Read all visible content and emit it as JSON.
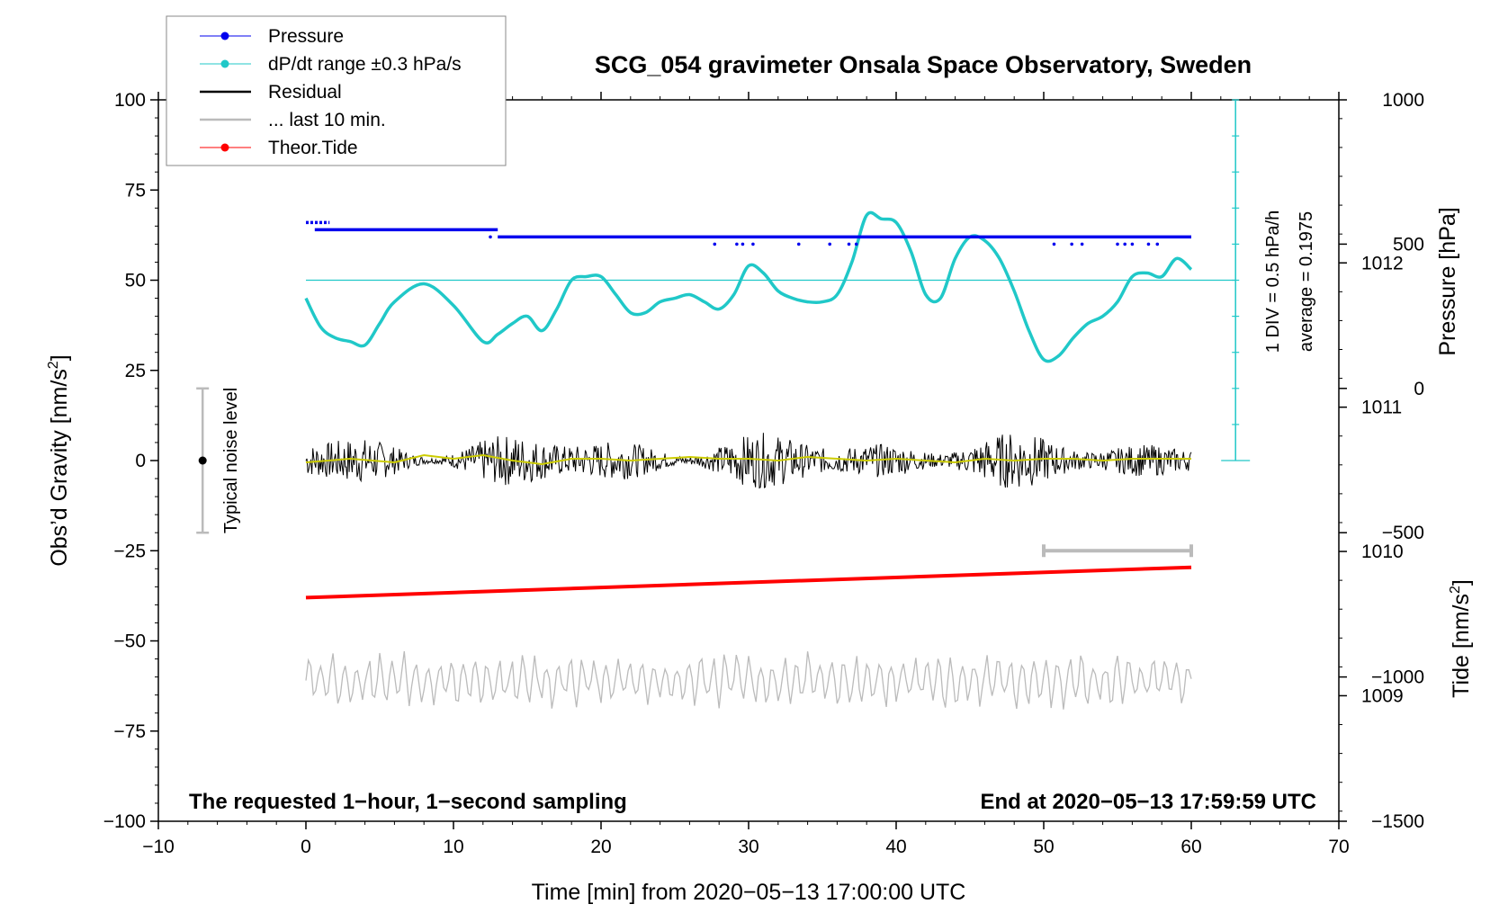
{
  "chart_data": {
    "type": "line",
    "title": "SCG_054 gravimeter Onsala Space Observatory, Sweden",
    "xlabel": "Time [min] from 2020−05−13 17:00:00 UTC",
    "ylabel_left": "Obs’d Gravity [nm/s",
    "ylabel_left_sup": "2",
    "ylabel_left_end": "]",
    "ylabel_right_pressure": "Pressure [hPa]",
    "ylabel_right_tide": "Tide [nm/s",
    "ylabel_right_tide_sup": "2",
    "ylabel_right_tide_end": "]",
    "xlim": [
      -10,
      70
    ],
    "ylim": [
      -100,
      100
    ],
    "pressure_axis_range": [
      1008.13,
      1013.13
    ],
    "tide_axis_range": [
      -1500,
      1000
    ],
    "x_ticks": [
      {
        "value": -10,
        "label": "−10"
      },
      {
        "value": 0,
        "label": "0"
      },
      {
        "value": 10,
        "label": "10"
      },
      {
        "value": 20,
        "label": "20"
      },
      {
        "value": 30,
        "label": "30"
      },
      {
        "value": 40,
        "label": "40"
      },
      {
        "value": 50,
        "label": "50"
      },
      {
        "value": 60,
        "label": "60"
      },
      {
        "value": 70,
        "label": "70"
      }
    ],
    "y_ticks": [
      {
        "value": 100,
        "label": "100"
      },
      {
        "value": 75,
        "label": "75"
      },
      {
        "value": 50,
        "label": "50"
      },
      {
        "value": 25,
        "label": "25"
      },
      {
        "value": 0,
        "label": "0"
      },
      {
        "value": -25,
        "label": "−25"
      },
      {
        "value": -50,
        "label": "−50"
      },
      {
        "value": -75,
        "label": "−75"
      },
      {
        "value": -100,
        "label": "−100"
      }
    ],
    "pressure_ticks": [
      {
        "value": 1012,
        "label": "1012"
      },
      {
        "value": 1011,
        "label": "1011"
      },
      {
        "value": 1010,
        "label": "1010"
      },
      {
        "value": 1009,
        "label": "1009"
      }
    ],
    "tide_ticks": [
      {
        "value": 1000,
        "label": "1000"
      },
      {
        "value": 500,
        "label": "500"
      },
      {
        "value": 0,
        "label": "0"
      },
      {
        "value": -500,
        "label": "−500"
      },
      {
        "value": -1000,
        "label": "−1000"
      },
      {
        "value": -1500,
        "label": "−1500"
      }
    ],
    "legend": [
      {
        "label": "Pressure",
        "color": "#0000ee",
        "marker": true
      },
      {
        "label": "dP/dt range ±0.3 hPa/s",
        "color": "#20c8c8",
        "marker": true
      },
      {
        "label": "Residual",
        "color": "#000000",
        "marker": false
      },
      {
        "label": "... last 10 min.",
        "color": "#bbbbbb",
        "marker": false
      },
      {
        "label": "Theor.Tide",
        "color": "#ff0000",
        "marker": true
      }
    ],
    "pressure_series": {
      "name": "Pressure",
      "color": "#0000ee",
      "segments": [
        {
          "x_start": 0.0,
          "x_end": 1.6,
          "y": 66
        },
        {
          "x_start": 0.6,
          "x_end": 13.0,
          "y": 64
        },
        {
          "x_start": 13.0,
          "x_end": 60.0,
          "y": 62
        }
      ],
      "stray_points": [
        {
          "x": 12.5,
          "y": 62
        },
        {
          "x": 27.7,
          "y": 60
        },
        {
          "x": 29.2,
          "y": 60
        },
        {
          "x": 29.6,
          "y": 60
        },
        {
          "x": 30.3,
          "y": 60
        },
        {
          "x": 33.4,
          "y": 60
        },
        {
          "x": 35.5,
          "y": 60
        },
        {
          "x": 36.8,
          "y": 60
        },
        {
          "x": 37.3,
          "y": 60
        },
        {
          "x": 50.7,
          "y": 60
        },
        {
          "x": 51.9,
          "y": 60
        },
        {
          "x": 52.6,
          "y": 60
        },
        {
          "x": 55.0,
          "y": 60
        },
        {
          "x": 55.5,
          "y": 60
        },
        {
          "x": 56.0,
          "y": 60
        },
        {
          "x": 57.1,
          "y": 60
        },
        {
          "x": 57.7,
          "y": 60
        }
      ]
    },
    "dpdt_series": {
      "name": "dP/dt",
      "color": "#20c8c8",
      "x": [
        0,
        1,
        2,
        3,
        4,
        5,
        6,
        8,
        10,
        12,
        13,
        14,
        15,
        16,
        17,
        18,
        19,
        20,
        21,
        22,
        23,
        24,
        25,
        26,
        27,
        28,
        29,
        30,
        31,
        32,
        33,
        34,
        35,
        36,
        37,
        38,
        39,
        40,
        41,
        42,
        43,
        44,
        45,
        46,
        47,
        48,
        49,
        50,
        51,
        52,
        53,
        54,
        55,
        56,
        57,
        58,
        59,
        60
      ],
      "y": [
        45,
        37,
        34,
        33,
        32,
        38,
        44,
        49,
        43,
        33,
        35,
        38,
        40,
        36,
        42,
        50,
        51,
        51,
        46,
        41,
        41,
        44,
        45,
        46,
        44,
        42,
        46,
        54,
        52,
        47,
        45,
        44,
        44,
        46,
        55,
        68,
        67,
        66,
        58,
        46,
        45,
        56,
        62,
        61,
        56,
        47,
        36,
        28,
        29,
        34,
        38,
        40,
        44,
        51,
        52,
        51,
        56,
        53
      ]
    },
    "dpdt_reference_line": 50,
    "dpdt_scale_bar": {
      "x": 63,
      "y_bottom": 0,
      "y_top": 100
    },
    "dpdt_scale_note": "1 DIV = 0.5 hPa/h",
    "dpdt_average_note": "average = 0.1975",
    "residual_series": {
      "name": "Residual",
      "color": "#000000",
      "x_start": 0,
      "x_end": 60,
      "amplitude": 8
    },
    "residual_smoothed": {
      "name": "Residual smoothed",
      "color": "#cccc00",
      "x": [
        0,
        3,
        6,
        8,
        10,
        12,
        14,
        16,
        18,
        20,
        22,
        24,
        26,
        28,
        30,
        32,
        34,
        36,
        38,
        40,
        42,
        44,
        46,
        48,
        50,
        52,
        54,
        56,
        58,
        60
      ],
      "y": [
        -0.5,
        0.5,
        -0.5,
        1.5,
        0.5,
        1.5,
        0.0,
        -1.0,
        0.5,
        0.5,
        0.0,
        0.5,
        1.0,
        0.5,
        0.5,
        0.0,
        1.0,
        0.5,
        0.0,
        0.5,
        0.0,
        -0.5,
        0.5,
        0.0,
        0.5,
        0.5,
        0.0,
        0.5,
        0.5,
        0.5
      ]
    },
    "last10_series": {
      "name": "... last 10 min.",
      "color": "#bbbbbb",
      "x_start": 0,
      "x_end": 60,
      "center": -61,
      "amplitude": 6
    },
    "last10_bar": {
      "x_start": 50,
      "x_end": 60,
      "y": -25
    },
    "tide_series": {
      "name": "Theor.Tide",
      "color": "#ff0000",
      "x": [
        0,
        60
      ],
      "tide_values": [
        -725,
        -620
      ]
    },
    "noise_level": {
      "x": -7,
      "y_min": -20,
      "y_max": 20,
      "center": 0
    },
    "noise_label": "Typical noise level",
    "footer_left": "The requested 1−hour, 1−second sampling",
    "footer_right": "End at 2020−05−13 17:59:59 UTC"
  }
}
